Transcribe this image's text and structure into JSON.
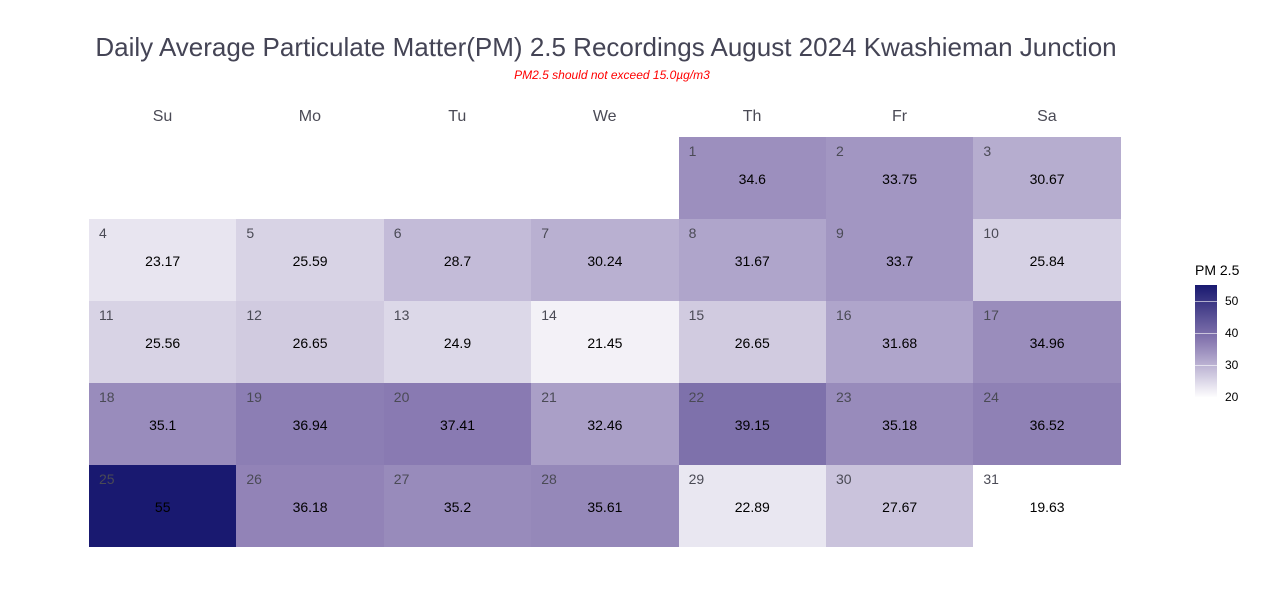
{
  "chart_data": {
    "type": "heatmap",
    "title": "Daily Average Particulate Matter(PM) 2.5 Recordings August 2024 Kwashieman Junction",
    "subtitle": "PM2.5 should not exceed 15.0µg/m3",
    "weekdays": [
      "Su",
      "Mo",
      "Tu",
      "We",
      "Th",
      "Fr",
      "Sa"
    ],
    "first_weekday_index": 4,
    "days": [
      1,
      2,
      3,
      4,
      5,
      6,
      7,
      8,
      9,
      10,
      11,
      12,
      13,
      14,
      15,
      16,
      17,
      18,
      19,
      20,
      21,
      22,
      23,
      24,
      25,
      26,
      27,
      28,
      29,
      30,
      31
    ],
    "values": [
      "34.6",
      "33.75",
      "30.67",
      "23.17",
      "25.59",
      "28.7",
      "30.24",
      "31.67",
      "33.7",
      "25.84",
      "25.56",
      "26.65",
      "24.9",
      "21.45",
      "26.65",
      "31.68",
      "34.96",
      "35.1",
      "36.94",
      "37.41",
      "32.46",
      "39.15",
      "35.18",
      "36.52",
      "55",
      "36.18",
      "35.2",
      "35.61",
      "22.89",
      "27.67",
      "19.63"
    ],
    "legend": {
      "title": "PM 2.5",
      "ticks": [
        "50",
        "40",
        "30",
        "20"
      ],
      "range": [
        19.63,
        55
      ]
    },
    "colors": {
      "low": "#ffffff",
      "mid": "#8a7bb2",
      "high": "#191970"
    }
  }
}
